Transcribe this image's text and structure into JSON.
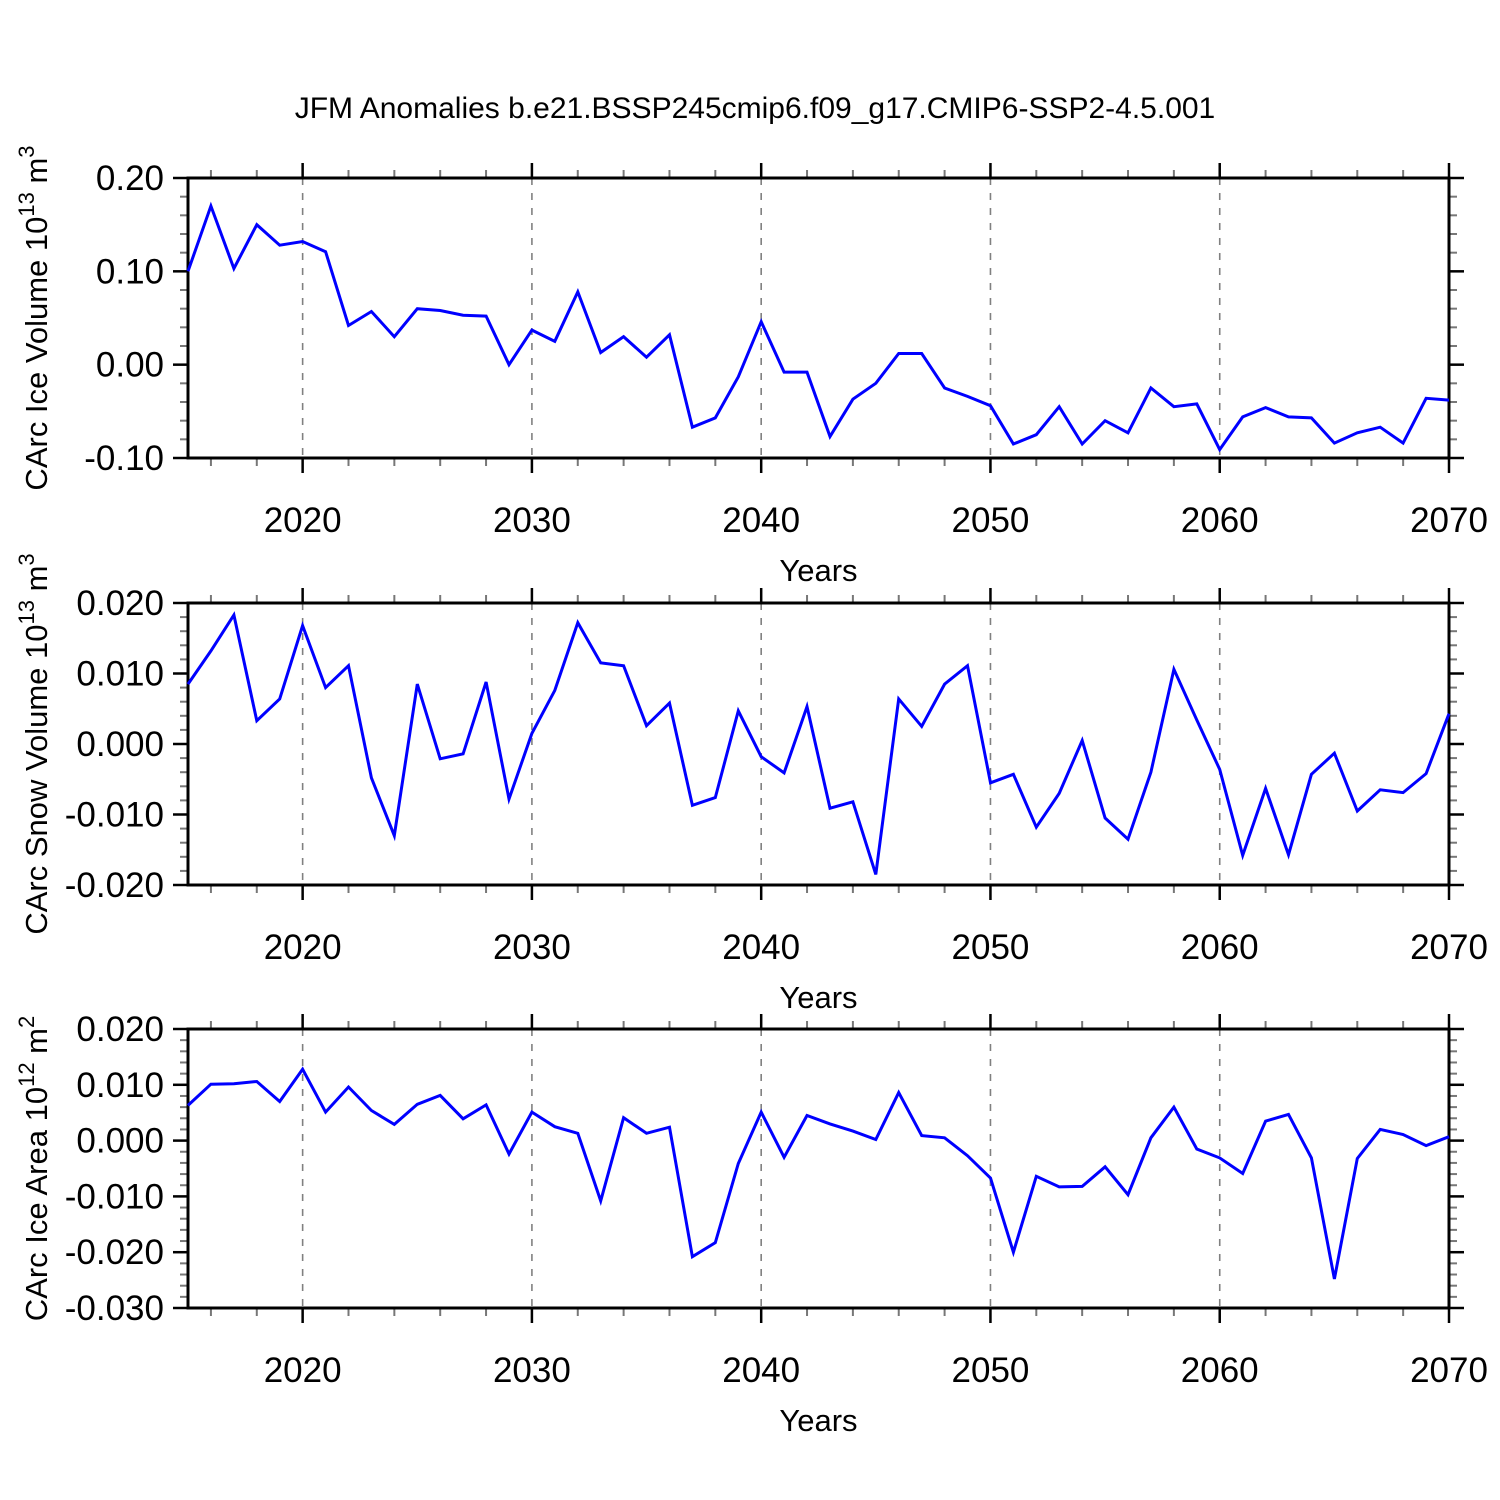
{
  "title": "JFM Anomalies b.e21.BSSP245cmip6.f09_g17.CMIP6-SSP2-4.5.001",
  "colors": {
    "line": "#0000ff",
    "grid": "#808080",
    "axis": "#000000",
    "minor_tick": "#777777",
    "background": "#ffffff"
  },
  "x_axis": {
    "label": "Years",
    "range": [
      2015,
      2070
    ],
    "major_ticks": [
      2020,
      2030,
      2040,
      2050,
      2060,
      2070
    ],
    "major_tick_labels": [
      "2020",
      "2030",
      "2040",
      "2050",
      "2060",
      "2070"
    ],
    "minor_step": 2,
    "grid_years": [
      2020,
      2030,
      2040,
      2050,
      2060
    ]
  },
  "years": [
    2015,
    2016,
    2017,
    2018,
    2019,
    2020,
    2021,
    2022,
    2023,
    2024,
    2025,
    2026,
    2027,
    2028,
    2029,
    2030,
    2031,
    2032,
    2033,
    2034,
    2035,
    2036,
    2037,
    2038,
    2039,
    2040,
    2041,
    2042,
    2043,
    2044,
    2045,
    2046,
    2047,
    2048,
    2049,
    2050,
    2051,
    2052,
    2053,
    2054,
    2055,
    2056,
    2057,
    2058,
    2059,
    2060,
    2061,
    2062,
    2063,
    2064,
    2065,
    2066,
    2067,
    2068,
    2069,
    2070
  ],
  "chart_data": [
    {
      "type": "line",
      "name": "carc-ice-volume",
      "ylabel_text": "CArc Ice Volume 10¹³ m³",
      "ylabel_parts": [
        {
          "t": "CArc Ice Volume 10",
          "sup": false
        },
        {
          "t": "13",
          "sup": true
        },
        {
          "t": " m",
          "sup": false
        },
        {
          "t": "3",
          "sup": true
        }
      ],
      "ylim": [
        -0.1,
        0.2
      ],
      "ytick_values": [
        0.2,
        0.1,
        0.0,
        -0.1
      ],
      "ytick_labels": [
        "0.20",
        "0.10",
        "0.00",
        "-0.10"
      ],
      "yminor_step": 0.02,
      "grid": true,
      "legend": "none",
      "values": [
        0.1,
        0.17,
        0.103,
        0.15,
        0.128,
        0.132,
        0.121,
        0.042,
        0.057,
        0.03,
        0.06,
        0.058,
        0.053,
        0.052,
        0.0,
        0.037,
        0.025,
        0.078,
        0.013,
        0.03,
        0.008,
        0.032,
        -0.067,
        -0.057,
        -0.013,
        0.046,
        -0.008,
        -0.008,
        -0.077,
        -0.037,
        -0.02,
        0.012,
        0.012,
        -0.025,
        -0.034,
        -0.044,
        -0.085,
        -0.075,
        -0.045,
        -0.085,
        -0.06,
        -0.073,
        -0.025,
        -0.045,
        -0.042,
        -0.091,
        -0.056,
        -0.046,
        -0.056,
        -0.057,
        -0.084,
        -0.073,
        -0.067,
        -0.084,
        -0.036,
        -0.038
      ]
    },
    {
      "type": "line",
      "name": "carc-snow-volume",
      "ylabel_text": "CArc Snow Volume 10¹³ m³",
      "ylabel_parts": [
        {
          "t": "CArc Snow Volume 10",
          "sup": false
        },
        {
          "t": "13",
          "sup": true
        },
        {
          "t": " m",
          "sup": false
        },
        {
          "t": "3",
          "sup": true
        }
      ],
      "ylim": [
        -0.02,
        0.02
      ],
      "ytick_values": [
        0.02,
        0.01,
        0.0,
        -0.01,
        -0.02
      ],
      "ytick_labels": [
        "0.020",
        "0.010",
        "0.000",
        "-0.010",
        "-0.020"
      ],
      "yminor_step": 0.002,
      "grid": true,
      "legend": "none",
      "values": [
        0.0085,
        0.0132,
        0.0183,
        0.0033,
        0.0064,
        0.0168,
        0.008,
        0.0111,
        -0.0048,
        -0.013,
        0.0085,
        -0.0021,
        -0.0014,
        0.0088,
        -0.0078,
        0.0015,
        0.0076,
        0.0172,
        0.0115,
        0.0111,
        0.0026,
        0.0058,
        -0.0087,
        -0.0076,
        0.0047,
        -0.0018,
        -0.0041,
        0.0053,
        -0.0091,
        -0.0082,
        -0.0185,
        0.0064,
        0.0025,
        0.0085,
        0.0111,
        -0.0055,
        -0.0043,
        -0.0118,
        -0.007,
        0.0005,
        -0.0105,
        -0.0135,
        -0.004,
        0.0106,
        0.0034,
        -0.0036,
        -0.0158,
        -0.0063,
        -0.0157,
        -0.0043,
        -0.0013,
        -0.0095,
        -0.0065,
        -0.0069,
        -0.0042,
        0.0043
      ]
    },
    {
      "type": "line",
      "name": "carc-ice-area",
      "ylabel_text": "CArc Ice Area 10¹² m²",
      "ylabel_parts": [
        {
          "t": "CArc Ice Area 10",
          "sup": false
        },
        {
          "t": "12",
          "sup": true
        },
        {
          "t": " m",
          "sup": false
        },
        {
          "t": "2",
          "sup": true
        }
      ],
      "ylim": [
        -0.03,
        0.02
      ],
      "ytick_values": [
        0.02,
        0.01,
        0.0,
        -0.01,
        -0.02,
        -0.03
      ],
      "ytick_labels": [
        "0.020",
        "0.010",
        "0.000",
        "-0.010",
        "-0.020",
        "-0.030"
      ],
      "yminor_step": 0.002,
      "grid": true,
      "legend": "none",
      "values": [
        0.0063,
        0.0101,
        0.0102,
        0.0106,
        0.007,
        0.0128,
        0.0051,
        0.0096,
        0.0054,
        0.0029,
        0.0065,
        0.0081,
        0.0039,
        0.0064,
        -0.0024,
        0.0051,
        0.0025,
        0.0013,
        -0.0108,
        0.0041,
        0.0013,
        0.0024,
        -0.0208,
        -0.0183,
        -0.0041,
        0.0051,
        -0.003,
        0.0045,
        0.003,
        0.0017,
        0.0002,
        0.0086,
        0.0009,
        0.0005,
        -0.0027,
        -0.0067,
        -0.02,
        -0.0064,
        -0.0083,
        -0.0082,
        -0.0047,
        -0.0097,
        0.0005,
        0.006,
        -0.0015,
        -0.0031,
        -0.0059,
        0.0035,
        0.0047,
        -0.0031,
        -0.0248,
        -0.0032,
        0.002,
        0.0011,
        -0.0009,
        0.0007
      ]
    }
  ]
}
